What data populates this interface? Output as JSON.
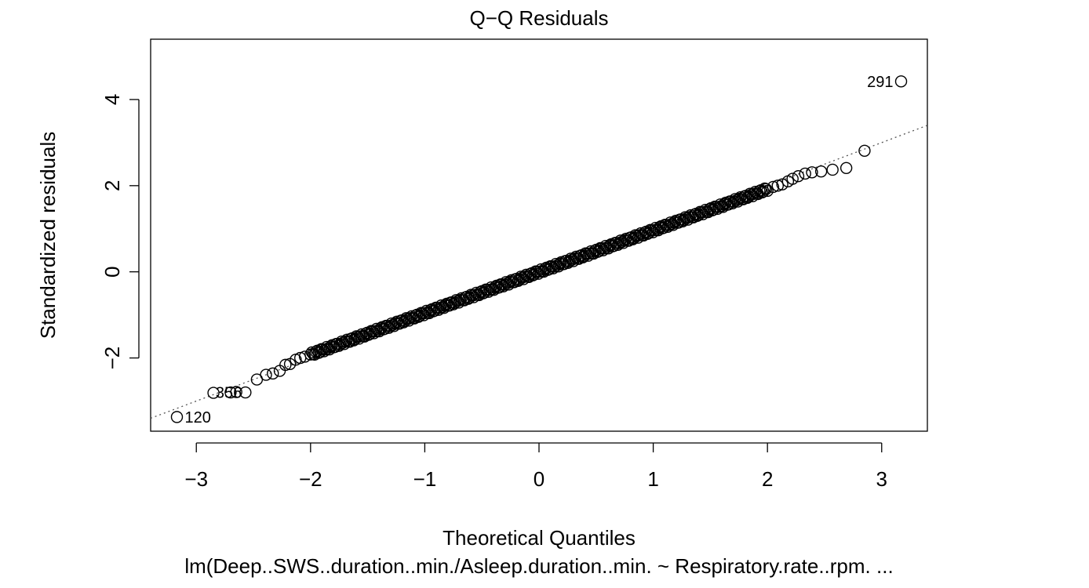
{
  "chart_data": {
    "type": "scatter",
    "title": "Q−Q Residuals",
    "xlabel": "Theoretical Quantiles",
    "ylabel": "Standardized residuals",
    "caption": "lm(Deep..SWS..duration..min./Asleep.duration..min. ~ Respiratory.rate..rpm. ...",
    "xlim": [
      -3.4,
      3.4
    ],
    "ylim": [
      -3.7,
      5.4
    ],
    "x_ticks": [
      -3,
      -2,
      -1,
      0,
      1,
      2,
      3
    ],
    "x_tick_labels": [
      "−3",
      "−2",
      "−1",
      "0",
      "1",
      "2",
      "3"
    ],
    "y_ticks": [
      -2,
      0,
      2,
      4
    ],
    "y_tick_labels": [
      "−2",
      "0",
      "2",
      "4"
    ],
    "reference_line": {
      "intercept": 0.0,
      "slope": 1.0,
      "style": "dotted"
    },
    "grid": false,
    "labeled_points": [
      {
        "label": "291",
        "x": 3.17,
        "y": 4.42
      },
      {
        "label": "356",
        "x": -2.57,
        "y": -2.8
      },
      {
        "label": "120",
        "x": -3.17,
        "y": -3.37
      }
    ],
    "tail_points": [
      {
        "x": -3.17,
        "y": -3.37
      },
      {
        "x": -2.85,
        "y": -2.81
      },
      {
        "x": -2.7,
        "y": -2.8
      },
      {
        "x": -2.65,
        "y": -2.79
      },
      {
        "x": -2.57,
        "y": -2.8
      },
      {
        "x": -2.47,
        "y": -2.5
      },
      {
        "x": -2.39,
        "y": -2.39
      },
      {
        "x": -2.33,
        "y": -2.36
      },
      {
        "x": -2.27,
        "y": -2.3
      },
      {
        "x": -2.22,
        "y": -2.16
      },
      {
        "x": -2.18,
        "y": -2.14
      },
      {
        "x": -2.13,
        "y": -2.04
      },
      {
        "x": -2.09,
        "y": -2.0
      },
      {
        "x": -2.05,
        "y": -1.97
      },
      {
        "x": 2.05,
        "y": 1.97
      },
      {
        "x": 2.09,
        "y": 2.0
      },
      {
        "x": 2.13,
        "y": 2.03
      },
      {
        "x": 2.18,
        "y": 2.1
      },
      {
        "x": 2.22,
        "y": 2.16
      },
      {
        "x": 2.27,
        "y": 2.22
      },
      {
        "x": 2.33,
        "y": 2.28
      },
      {
        "x": 2.39,
        "y": 2.31
      },
      {
        "x": 2.47,
        "y": 2.33
      },
      {
        "x": 2.57,
        "y": 2.37
      },
      {
        "x": 2.69,
        "y": 2.41
      },
      {
        "x": 2.85,
        "y": 2.81
      },
      {
        "x": 3.17,
        "y": 4.42
      }
    ],
    "body_points": {
      "x_from": -2.0,
      "x_to": 2.0,
      "count": 340,
      "approx_slope": 0.96
    }
  }
}
